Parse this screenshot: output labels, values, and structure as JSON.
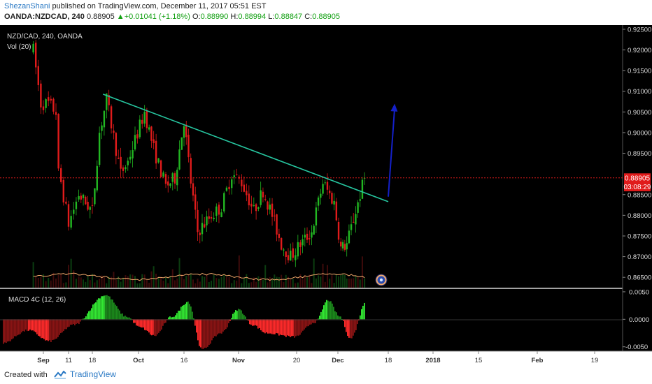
{
  "header": {
    "author": "ShezanShani",
    "published": "published on TradingView.com, December 11, 2017 05:51 EST",
    "symbol": "OANDA:NZDCAD, 240",
    "last": "0.88905",
    "arrow": "▲",
    "change": "+0.01041 (+1.18%)",
    "o_label": "O:",
    "o_value": "0.88990",
    "h_label": "H:",
    "h_value": "0.88994",
    "l_label": "L:",
    "l_value": "0.88847",
    "c_label": "C:",
    "c_value": "0.88905"
  },
  "legend": {
    "title": "NZD/CAD, 240, OANDA",
    "vol": "Vol (20)",
    "macd": "MACD 4C (12, 26)"
  },
  "footer": {
    "created_with": "Created with",
    "brand": "TradingView"
  },
  "colors": {
    "up": "#22b722",
    "down": "#e01b1b",
    "trendline": "#26c6a0",
    "arrow": "#1420c8",
    "price_line": "#e01b1b",
    "background": "#000000",
    "vol_ma": "#f2a96b"
  },
  "chart_data": {
    "type": "candlestick",
    "instrument": "NZD/CAD",
    "timeframe": "240",
    "x_ticks": [
      "Sep",
      "11",
      "18",
      "Oct",
      "16",
      "Nov",
      "20",
      "Dec",
      "18",
      "2018",
      "15",
      "Feb",
      "19"
    ],
    "y_ticks": [
      "0.92500",
      "0.92000",
      "0.91500",
      "0.91000",
      "0.90500",
      "0.90000",
      "0.89500",
      "0.89000",
      "0.88500",
      "0.88000",
      "0.87500",
      "0.87000",
      "0.86500"
    ],
    "ylim": [
      0.8625,
      0.926
    ],
    "current_price": "0.88905",
    "countdown": "03:08:29",
    "macd_ticks": [
      "0.0050",
      "0.0000",
      "-0.0050"
    ],
    "macd_range": [
      -0.0058,
      0.0055
    ],
    "price_path": [
      {
        "date": "2017-08-28",
        "close": 0.92
      },
      {
        "date": "2017-08-31",
        "close": 0.907
      },
      {
        "date": "2017-09-03",
        "close": 0.907
      },
      {
        "date": "2017-09-06",
        "close": 0.905
      },
      {
        "date": "2017-09-07",
        "close": 0.89
      },
      {
        "date": "2017-09-08",
        "close": 0.888
      },
      {
        "date": "2017-09-11",
        "close": 0.878
      },
      {
        "date": "2017-09-14",
        "close": 0.885
      },
      {
        "date": "2017-09-18",
        "close": 0.881
      },
      {
        "date": "2017-09-20",
        "close": 0.9
      },
      {
        "date": "2017-09-22",
        "close": 0.908
      },
      {
        "date": "2017-09-26",
        "close": 0.89
      },
      {
        "date": "2017-09-28",
        "close": 0.893
      },
      {
        "date": "2017-10-03",
        "close": 0.905
      },
      {
        "date": "2017-10-06",
        "close": 0.896
      },
      {
        "date": "2017-10-10",
        "close": 0.887
      },
      {
        "date": "2017-10-13",
        "close": 0.889
      },
      {
        "date": "2017-10-16",
        "close": 0.903
      },
      {
        "date": "2017-10-18",
        "close": 0.888
      },
      {
        "date": "2017-10-20",
        "close": 0.876
      },
      {
        "date": "2017-10-24",
        "close": 0.88
      },
      {
        "date": "2017-10-27",
        "close": 0.882
      },
      {
        "date": "2017-10-30",
        "close": 0.89
      },
      {
        "date": "2017-11-02",
        "close": 0.888
      },
      {
        "date": "2017-11-06",
        "close": 0.881
      },
      {
        "date": "2017-11-09",
        "close": 0.886
      },
      {
        "date": "2017-11-12",
        "close": 0.88
      },
      {
        "date": "2017-11-15",
        "close": 0.873
      },
      {
        "date": "2017-11-18",
        "close": 0.87
      },
      {
        "date": "2017-11-21",
        "close": 0.873
      },
      {
        "date": "2017-11-24",
        "close": 0.876
      },
      {
        "date": "2017-11-27",
        "close": 0.888
      },
      {
        "date": "2017-11-30",
        "close": 0.883
      },
      {
        "date": "2017-12-02",
        "close": 0.872
      },
      {
        "date": "2017-12-04",
        "close": 0.873
      },
      {
        "date": "2017-12-07",
        "close": 0.881
      },
      {
        "date": "2017-12-10",
        "close": 0.889
      }
    ],
    "trendline": {
      "from": {
        "date": "2017-09-21",
        "price": 0.9093
      },
      "to": {
        "date": "2017-12-18",
        "price": 0.8833
      }
    },
    "projection_arrow": {
      "from": {
        "date": "2017-12-18",
        "price": 0.8845
      },
      "to": {
        "date": "2017-12-20",
        "price": 0.907
      }
    }
  }
}
